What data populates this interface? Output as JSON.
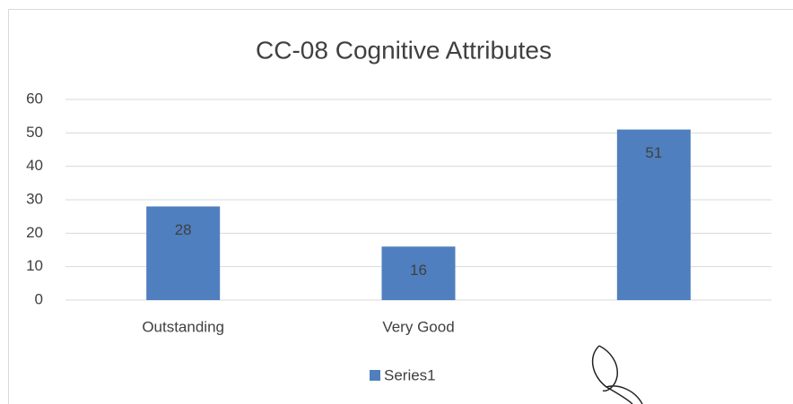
{
  "chart_data": {
    "type": "bar",
    "title": "CC-08 Cognitive Attributes",
    "categories": [
      "Outstanding",
      "Very Good",
      null
    ],
    "series": [
      {
        "name": "Series1",
        "color": "#4f7fbe",
        "values": [
          28,
          16,
          51
        ]
      }
    ],
    "ylim": [
      0,
      60
    ],
    "yticks": [
      0,
      10,
      20,
      30,
      40,
      50,
      60
    ],
    "grid": true,
    "legend": "bottom"
  }
}
